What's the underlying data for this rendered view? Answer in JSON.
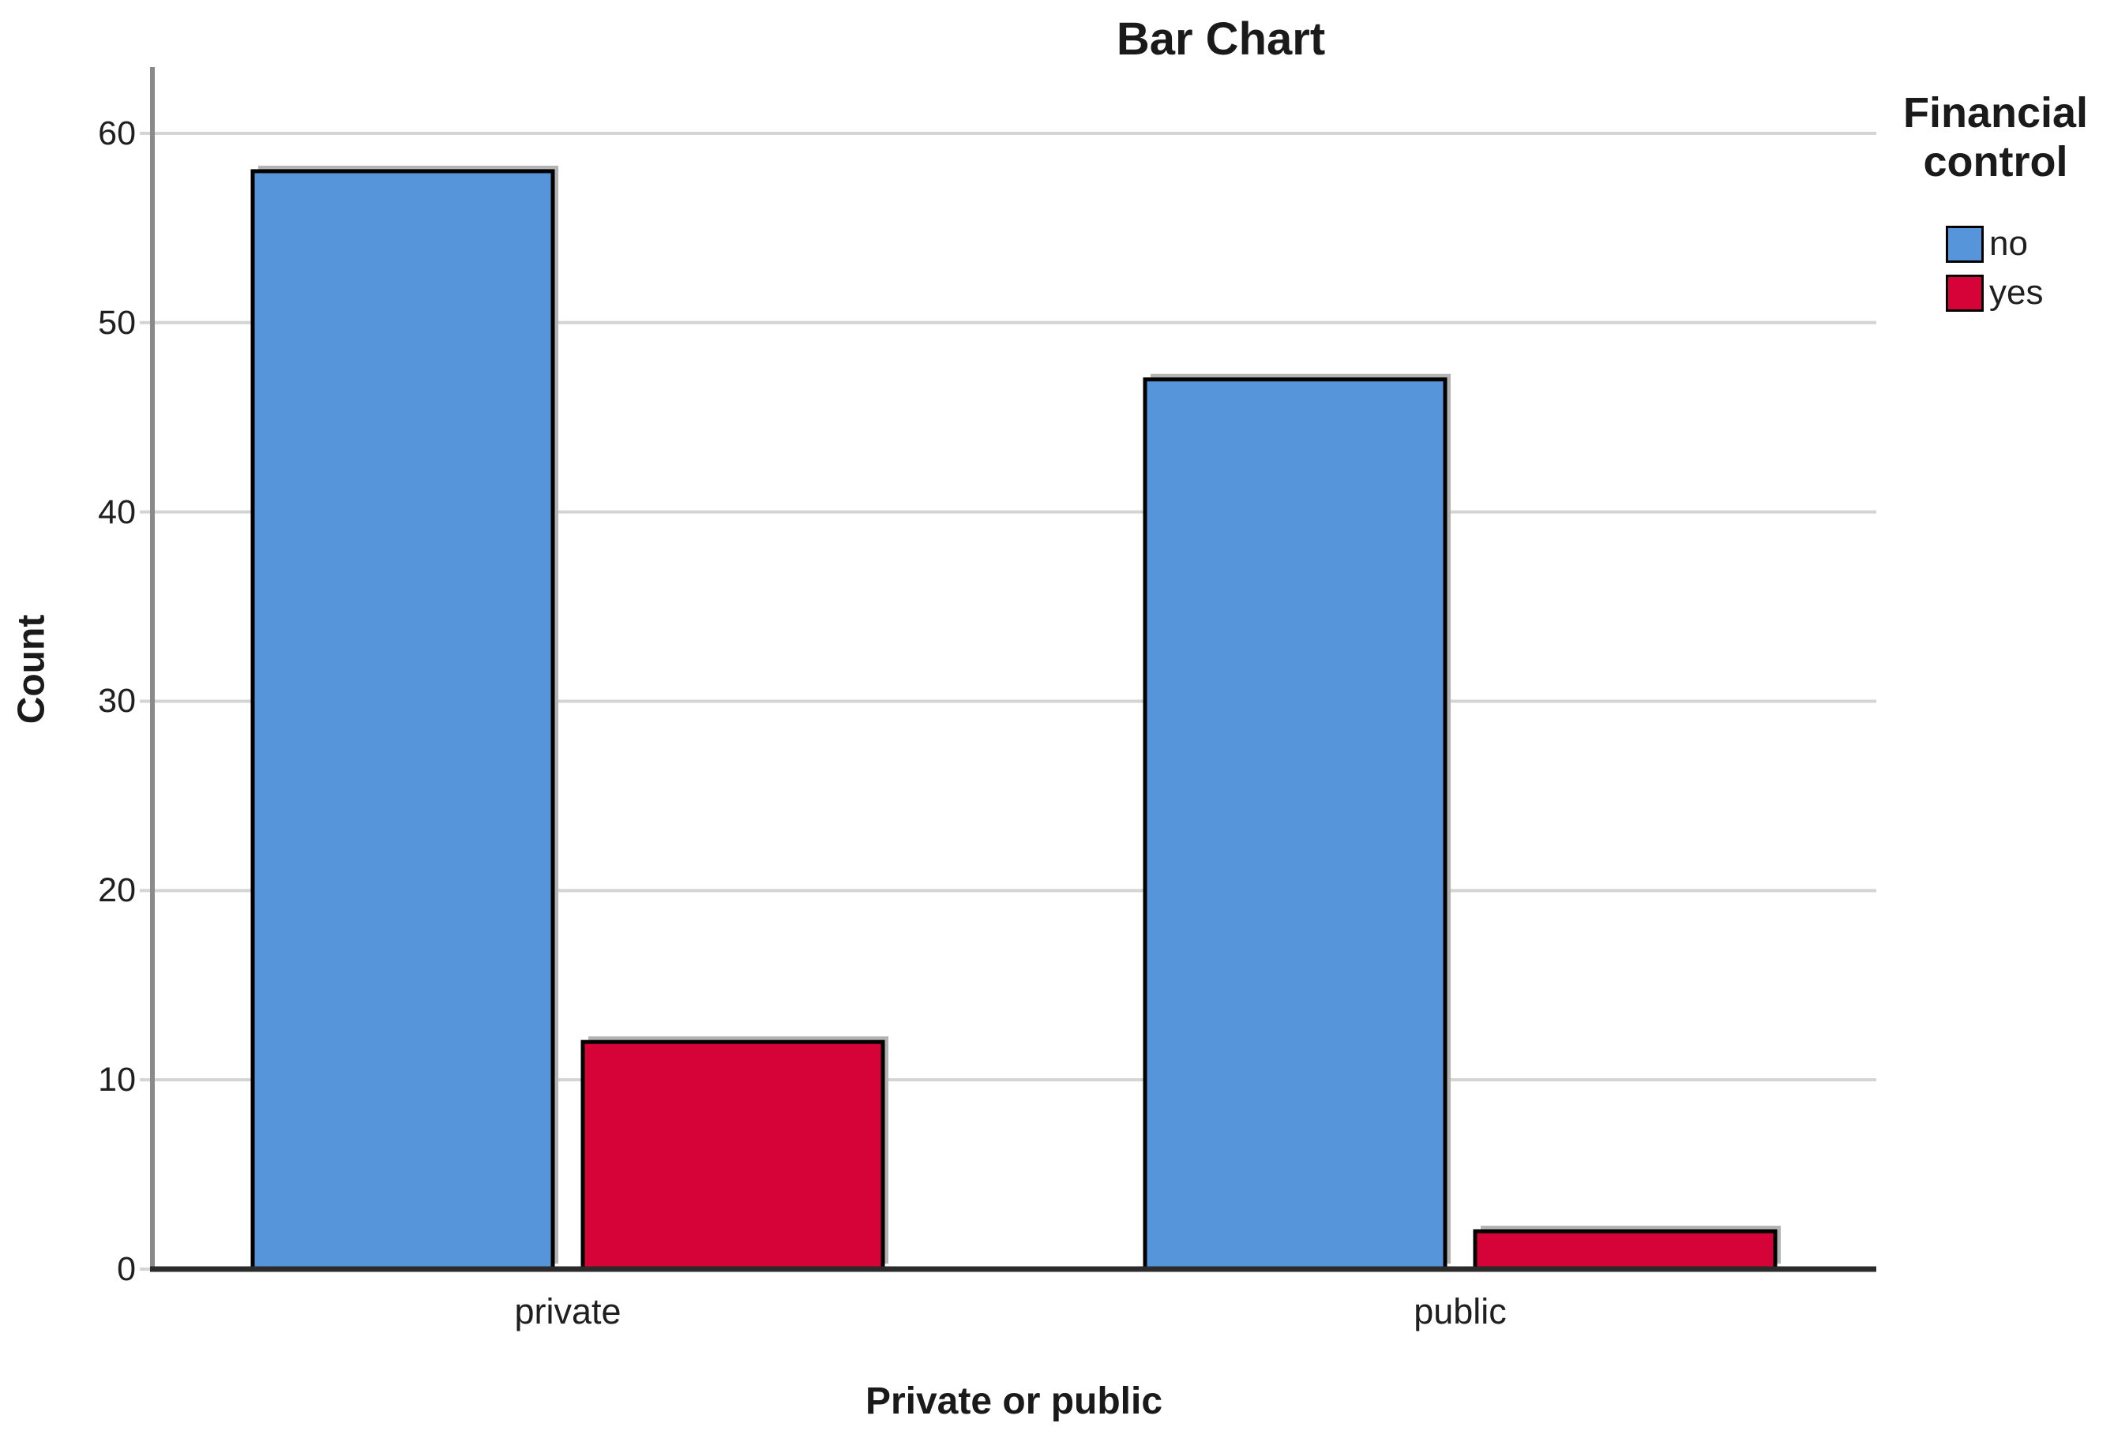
{
  "chart_data": {
    "type": "bar",
    "title": "Bar Chart",
    "xlabel": "Private or public",
    "ylabel": "Count",
    "categories": [
      "private",
      "public"
    ],
    "series": [
      {
        "name": "no",
        "color": "#5795DB",
        "values": [
          58,
          47
        ]
      },
      {
        "name": "yes",
        "color": "#D60339",
        "values": [
          12,
          2
        ]
      }
    ],
    "legend_title": "Financial control",
    "legend_position": "right",
    "ylim": [
      0,
      63.5
    ],
    "yticks": [
      0,
      10,
      20,
      30,
      40,
      50,
      60
    ],
    "grid": "horizontal gridlines at each y tick, no vertical gridlines"
  },
  "colors": {
    "background": "#FFFFFF",
    "bar_border": "#000000",
    "bar_shadow": "#B3B3B3",
    "gridline": "#D4D4D4",
    "y_axis_line": "#8A8A8A",
    "x_axis_line": "#2B2B2B",
    "text": "#1A1A1A"
  }
}
